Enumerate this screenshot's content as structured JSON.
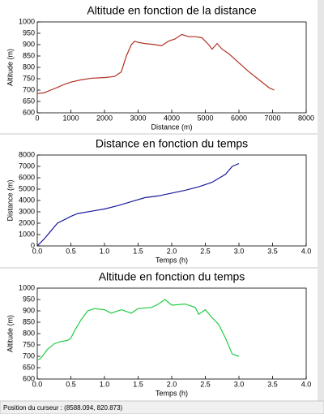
{
  "chart_data": [
    {
      "type": "line",
      "title": "Altitude en fonction de la distance",
      "xlabel": "Distance (m)",
      "ylabel": "Altitude (m)",
      "x": [
        0,
        200,
        400,
        600,
        800,
        1000,
        1300,
        1600,
        2000,
        2300,
        2500,
        2650,
        2800,
        2900,
        3000,
        3200,
        3500,
        3700,
        3900,
        4100,
        4300,
        4500,
        4700,
        4900,
        5100,
        5200,
        5350,
        5500,
        5700,
        6000,
        6300,
        6600,
        6900,
        7050
      ],
      "values": [
        685,
        688,
        700,
        712,
        725,
        735,
        745,
        752,
        755,
        760,
        780,
        850,
        900,
        915,
        910,
        905,
        900,
        895,
        915,
        925,
        945,
        935,
        935,
        930,
        900,
        880,
        905,
        880,
        860,
        820,
        780,
        745,
        710,
        700
      ],
      "color": "#b03020",
      "xlim": [
        0,
        8000
      ],
      "xticks": [
        0,
        1000,
        2000,
        3000,
        4000,
        5000,
        6000,
        7000,
        8000
      ],
      "ylim": [
        600,
        1000
      ],
      "yticks": [
        600,
        650,
        700,
        750,
        800,
        850,
        900,
        950,
        1000
      ]
    },
    {
      "type": "line",
      "title": "Distance en fonction du temps",
      "xlabel": "Temps (h)",
      "ylabel": "Distance (m)",
      "x": [
        0,
        0.1,
        0.2,
        0.3,
        0.4,
        0.5,
        0.6,
        0.8,
        1.0,
        1.2,
        1.4,
        1.6,
        1.8,
        2.0,
        2.2,
        2.4,
        2.6,
        2.8,
        2.9,
        3.0
      ],
      "values": [
        0,
        600,
        1300,
        2000,
        2300,
        2600,
        2850,
        3050,
        3250,
        3550,
        3900,
        4250,
        4400,
        4650,
        4900,
        5200,
        5600,
        6300,
        7000,
        7250
      ],
      "color": "#1a1a9a",
      "xlim": [
        0,
        4
      ],
      "xticks": [
        {
          "value": 0,
          "label": "0.0"
        },
        {
          "value": 0.5,
          "label": "0.5"
        },
        {
          "value": 1,
          "label": "1.0"
        },
        {
          "value": 1.5,
          "label": "1.5"
        },
        {
          "value": 2,
          "label": "2.0"
        },
        {
          "value": 2.5,
          "label": "2.5"
        },
        {
          "value": 3,
          "label": "3.0"
        },
        {
          "value": 3.5,
          "label": "3.5"
        },
        {
          "value": 4,
          "label": "4.0"
        }
      ],
      "ylim": [
        0,
        8000
      ],
      "yticks": [
        0,
        1000,
        2000,
        3000,
        4000,
        5000,
        6000,
        7000,
        8000
      ]
    },
    {
      "type": "line",
      "title": "Altitude en fonction du temps",
      "xlabel": "Temps (h)",
      "ylabel": "Altitude (m)",
      "x": [
        0,
        0.05,
        0.15,
        0.25,
        0.35,
        0.45,
        0.5,
        0.55,
        0.65,
        0.75,
        0.85,
        1.0,
        1.1,
        1.25,
        1.4,
        1.5,
        1.7,
        1.8,
        1.9,
        2.0,
        2.2,
        2.35,
        2.4,
        2.5,
        2.6,
        2.7,
        2.8,
        2.9,
        3.0
      ],
      "values": [
        685,
        690,
        730,
        755,
        765,
        770,
        780,
        810,
        860,
        900,
        910,
        905,
        890,
        905,
        890,
        910,
        915,
        930,
        950,
        925,
        930,
        915,
        885,
        905,
        870,
        840,
        780,
        710,
        700
      ],
      "color": "#22cc44",
      "xlim": [
        0,
        4
      ],
      "xticks": [
        {
          "value": 0,
          "label": "0.0"
        },
        {
          "value": 0.5,
          "label": "0.5"
        },
        {
          "value": 1,
          "label": "1.0"
        },
        {
          "value": 1.5,
          "label": "1.5"
        },
        {
          "value": 2,
          "label": "2.0"
        },
        {
          "value": 2.5,
          "label": "2.5"
        },
        {
          "value": 3,
          "label": "3.0"
        },
        {
          "value": 3.5,
          "label": "3.5"
        },
        {
          "value": 4,
          "label": "4.0"
        }
      ],
      "ylim": [
        600,
        1000
      ],
      "yticks": [
        600,
        650,
        700,
        750,
        800,
        850,
        900,
        950,
        1000
      ]
    }
  ],
  "status": "Position du curseur : (8588.094, 820.873)"
}
